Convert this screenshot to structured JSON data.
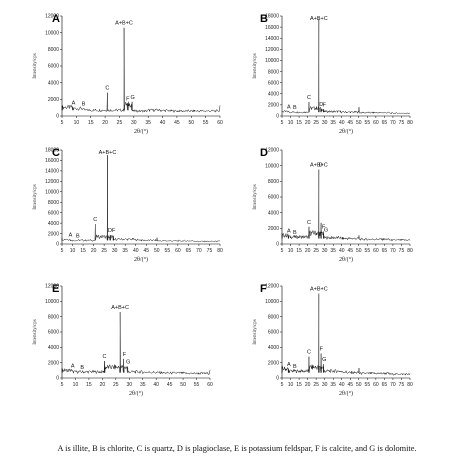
{
  "caption": "A is illite, B is chlorite, C is quartz, D is plagioclase, E is potassium feldspar, F is calcite, and G is dolomite.",
  "chart_data": [
    {
      "type": "line",
      "panel": "A",
      "xlim": [
        5,
        60
      ],
      "ylim": [
        0,
        12000
      ],
      "yticks": [
        0,
        2000,
        4000,
        6000,
        8000,
        10000,
        12000
      ],
      "ylabel": "Intensity/cps",
      "xlabel": "2θ/(°)",
      "series": [
        {
          "x": [
            5,
            8.8,
            12.5,
            19,
            20.8,
            23,
            26.6,
            27.9,
            29.4,
            31,
            35,
            39.5,
            42.5,
            45.8,
            50.1,
            55,
            59.9
          ],
          "y": [
            1200,
            1050,
            900,
            700,
            2800,
            700,
            10600,
            1500,
            1700,
            600,
            700,
            750,
            650,
            600,
            750,
            600,
            600
          ]
        }
      ],
      "peaks": [
        {
          "label": "A",
          "x": 9
        },
        {
          "label": "B",
          "x": 12.5
        },
        {
          "label": "C",
          "x": 20.8
        },
        {
          "label": "A+B+C",
          "x": 26.6
        },
        {
          "label": "F",
          "x": 27.9
        },
        {
          "label": "G",
          "x": 29.6
        }
      ]
    },
    {
      "type": "line",
      "panel": "B",
      "xlim": [
        5,
        80
      ],
      "ylim": [
        0,
        18000
      ],
      "yticks": [
        0,
        2000,
        4000,
        6000,
        8000,
        10000,
        12000,
        14000,
        16000,
        18000
      ],
      "ylabel": "Intensity/cps",
      "xlabel": "2θ/(°)",
      "series": [
        {
          "x": [
            5,
            8.8,
            12.5,
            20.8,
            26.6,
            27.9,
            29.4,
            36.5,
            39.5,
            42.5,
            45.8,
            50.1,
            55,
            60,
            68,
            75,
            80
          ],
          "y": [
            1000,
            800,
            700,
            2500,
            17500,
            1300,
            1200,
            800,
            900,
            700,
            700,
            1600,
            600,
            900,
            600,
            500,
            500
          ]
        }
      ],
      "peaks": [
        {
          "label": "A",
          "x": 9
        },
        {
          "label": "B",
          "x": 12.5
        },
        {
          "label": "C",
          "x": 20.8
        },
        {
          "label": "A+B+C",
          "x": 26.6
        },
        {
          "label": "D",
          "x": 28
        },
        {
          "label": "F",
          "x": 29.8
        }
      ]
    },
    {
      "type": "line",
      "panel": "C",
      "xlim": [
        5,
        80
      ],
      "ylim": [
        0,
        18000
      ],
      "yticks": [
        0,
        2000,
        4000,
        6000,
        8000,
        10000,
        12000,
        14000,
        16000,
        18000
      ],
      "ylabel": "Intensity/cps",
      "xlabel": "2θ/(°)",
      "series": [
        {
          "x": [
            5,
            8.8,
            12.5,
            20.8,
            26.6,
            27.9,
            29.4,
            36.5,
            39.5,
            42.5,
            45.8,
            50.1,
            55,
            60,
            68,
            75,
            80
          ],
          "y": [
            1200,
            900,
            700,
            3800,
            17000,
            1700,
            1500,
            900,
            900,
            800,
            700,
            1200,
            600,
            900,
            600,
            500,
            500
          ]
        }
      ],
      "peaks": [
        {
          "label": "A",
          "x": 9
        },
        {
          "label": "B",
          "x": 12.5
        },
        {
          "label": "C",
          "x": 20.8
        },
        {
          "label": "A+B+C",
          "x": 26.6
        },
        {
          "label": "DF",
          "x": 28.6
        }
      ]
    },
    {
      "type": "line",
      "panel": "D",
      "xlim": [
        5,
        80
      ],
      "ylim": [
        0,
        12000
      ],
      "yticks": [
        0,
        2000,
        4000,
        6000,
        8000,
        10000,
        12000
      ],
      "ylabel": "Intensity/cps",
      "xlabel": "2θ/(°)",
      "series": [
        {
          "x": [
            5,
            8.8,
            12.5,
            20.8,
            26.6,
            27.9,
            29.4,
            36.5,
            39.5,
            42.5,
            45.8,
            50.1,
            55,
            60,
            68,
            75,
            80
          ],
          "y": [
            1400,
            1100,
            900,
            2200,
            9500,
            2700,
            1600,
            800,
            800,
            700,
            700,
            1100,
            600,
            700,
            600,
            500,
            500
          ]
        }
      ],
      "peaks": [
        {
          "label": "A",
          "x": 9
        },
        {
          "label": "B",
          "x": 12.5
        },
        {
          "label": "C",
          "x": 20.8
        },
        {
          "label": "A+B+C",
          "x": 26.6
        },
        {
          "label": "D",
          "x": 27.6
        },
        {
          "label": "F",
          "x": 29.4
        },
        {
          "label": "G",
          "x": 30.8
        }
      ]
    },
    {
      "type": "line",
      "panel": "E",
      "xlim": [
        5,
        60
      ],
      "ylim": [
        0,
        12000
      ],
      "yticks": [
        0,
        2000,
        4000,
        6000,
        8000,
        10000,
        12000
      ],
      "ylabel": "Intensity/cps",
      "xlabel": "2θ/(°)",
      "series": [
        {
          "x": [
            5,
            8.8,
            12.5,
            20.8,
            26.6,
            27.9,
            29.4,
            31,
            35,
            39.5,
            42.5,
            45.8,
            50.1,
            55,
            59.9
          ],
          "y": [
            1300,
            1000,
            800,
            2200,
            8600,
            2500,
            1500,
            800,
            800,
            750,
            700,
            650,
            900,
            600,
            600
          ]
        }
      ],
      "peaks": [
        {
          "label": "A",
          "x": 9
        },
        {
          "label": "B",
          "x": 12.5
        },
        {
          "label": "C",
          "x": 20.8
        },
        {
          "label": "A+B+C",
          "x": 26.6
        },
        {
          "label": "F",
          "x": 28.2
        },
        {
          "label": "G",
          "x": 29.6
        }
      ]
    },
    {
      "type": "line",
      "panel": "F",
      "xlim": [
        5,
        80
      ],
      "ylim": [
        0,
        12000
      ],
      "yticks": [
        0,
        2000,
        4000,
        6000,
        8000,
        10000,
        12000
      ],
      "ylabel": "Intensity/cps",
      "xlabel": "2θ/(°)",
      "series": [
        {
          "x": [
            5,
            8.8,
            12.5,
            20.8,
            26.6,
            27.9,
            29.4,
            36.5,
            39.5,
            42.5,
            45.8,
            50.1,
            55,
            60,
            68,
            75,
            80
          ],
          "y": [
            1600,
            1200,
            900,
            2800,
            11000,
            3200,
            1800,
            900,
            900,
            800,
            700,
            1300,
            600,
            800,
            600,
            500,
            500
          ]
        }
      ],
      "peaks": [
        {
          "label": "A",
          "x": 9
        },
        {
          "label": "B",
          "x": 12.5
        },
        {
          "label": "C",
          "x": 20.8
        },
        {
          "label": "A+B+C",
          "x": 26.6
        },
        {
          "label": "F",
          "x": 28
        },
        {
          "label": "G",
          "x": 29.8
        }
      ]
    }
  ]
}
